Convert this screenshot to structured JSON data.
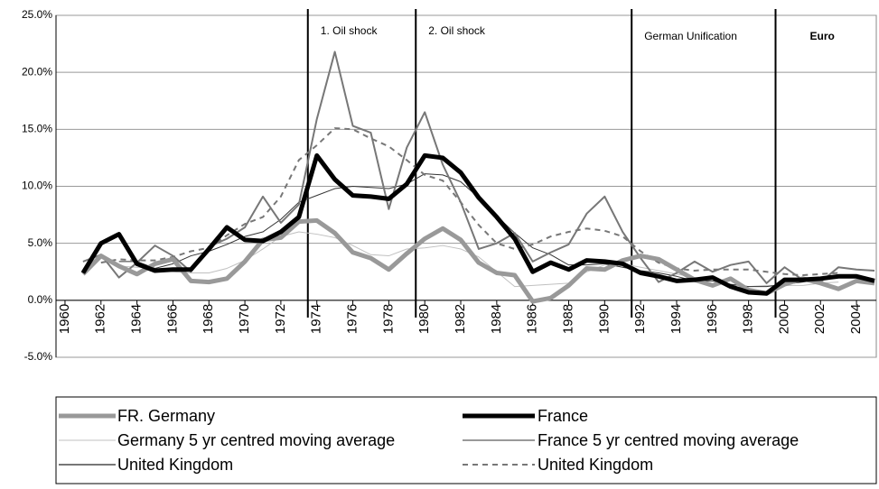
{
  "chart_data": {
    "type": "line",
    "x": [
      1961,
      1962,
      1963,
      1964,
      1965,
      1966,
      1967,
      1968,
      1969,
      1970,
      1971,
      1972,
      1973,
      1974,
      1975,
      1976,
      1977,
      1978,
      1979,
      1980,
      1981,
      1982,
      1983,
      1984,
      1985,
      1986,
      1987,
      1988,
      1989,
      1990,
      1991,
      1992,
      1993,
      1994,
      1995,
      1996,
      1997,
      1998,
      1999,
      2000,
      2001,
      2002,
      2003,
      2004,
      2005
    ],
    "xlim": [
      1959.5,
      2005.1
    ],
    "xticks": [
      1960,
      1962,
      1964,
      1966,
      1968,
      1970,
      1972,
      1974,
      1976,
      1978,
      1980,
      1982,
      1984,
      1986,
      1988,
      1990,
      1992,
      1994,
      1996,
      1998,
      2000,
      2002,
      2004
    ],
    "ylim": [
      -5,
      25
    ],
    "yticks": [
      {
        "value": -5,
        "label": "-5.0%"
      },
      {
        "value": 0,
        "label": "0.0%"
      },
      {
        "value": 5,
        "label": "5.0%"
      },
      {
        "value": 10,
        "label": "10.0%"
      },
      {
        "value": 15,
        "label": "15.0%"
      },
      {
        "value": 20,
        "label": "20.0%"
      },
      {
        "value": 25,
        "label": "25.0%"
      }
    ],
    "grid": true,
    "annotations": [
      {
        "x": 1973.5,
        "label": "1. Oil shock",
        "bold": false
      },
      {
        "x": 1979.5,
        "label": "2. Oil shock",
        "bold": false
      },
      {
        "x": 1991.5,
        "label": "German Unification",
        "bold": false
      },
      {
        "x": 1999.5,
        "label": "Euro",
        "bold": true
      }
    ],
    "series": [
      {
        "name": "FR. Germany",
        "color": "#999999",
        "line_width": 5,
        "dashed": false,
        "values": [
          2.3,
          3.9,
          3.0,
          2.3,
          3.2,
          3.6,
          1.7,
          1.6,
          1.9,
          3.4,
          5.3,
          5.5,
          6.9,
          7.0,
          5.9,
          4.2,
          3.7,
          2.7,
          4.1,
          5.4,
          6.3,
          5.3,
          3.3,
          2.4,
          2.2,
          -0.1,
          0.2,
          1.3,
          2.8,
          2.7,
          3.5,
          3.9,
          3.6,
          2.7,
          1.8,
          1.3,
          1.9,
          0.9,
          0.6,
          1.4,
          1.9,
          1.5,
          1.0,
          1.7,
          1.5
        ]
      },
      {
        "name": "France",
        "color": "#000000",
        "line_width": 5,
        "dashed": false,
        "values": [
          2.4,
          5.0,
          5.8,
          3.2,
          2.6,
          2.7,
          2.7,
          4.5,
          6.4,
          5.3,
          5.2,
          6.0,
          7.3,
          12.7,
          10.6,
          9.2,
          9.1,
          8.9,
          10.2,
          12.7,
          12.5,
          11.2,
          9.0,
          7.3,
          5.4,
          2.5,
          3.3,
          2.7,
          3.5,
          3.4,
          3.2,
          2.4,
          2.1,
          1.7,
          1.8,
          2.0,
          1.2,
          0.7,
          0.6,
          1.8,
          1.8,
          1.9,
          2.1,
          2.1,
          1.7
        ]
      },
      {
        "name": "Germany 5 yr centred moving average",
        "color": "#c0c0c0",
        "line_width": 1,
        "dashed": false,
        "values": [
          null,
          null,
          3.0,
          2.9,
          2.8,
          2.5,
          2.4,
          2.4,
          2.8,
          3.5,
          4.5,
          5.6,
          6.0,
          5.8,
          5.5,
          4.8,
          4.0,
          3.9,
          4.5,
          4.6,
          4.8,
          4.5,
          3.8,
          2.5,
          1.2,
          1.3,
          1.4,
          1.5,
          2.5,
          3.1,
          3.2,
          2.9,
          2.6,
          2.3,
          2.0,
          1.7,
          1.4,
          1.2,
          1.3,
          1.3,
          1.3,
          1.5,
          1.6,
          null,
          null
        ]
      },
      {
        "name": "France 5 yr centred moving average",
        "color": "#333333",
        "line_width": 1,
        "dashed": false,
        "values": [
          null,
          null,
          3.4,
          3.4,
          2.8,
          3.2,
          3.9,
          4.3,
          4.9,
          5.6,
          6.0,
          7.1,
          8.6,
          9.2,
          9.8,
          10.0,
          9.9,
          9.8,
          10.2,
          11.1,
          11.0,
          10.4,
          9.0,
          7.4,
          5.9,
          4.6,
          4.0,
          3.1,
          3.1,
          3.2,
          2.9,
          2.6,
          2.4,
          2.1,
          1.7,
          1.7,
          1.4,
          1.2,
          1.2,
          1.4,
          1.6,
          1.8,
          2.0,
          null,
          null
        ]
      },
      {
        "name": "United Kingdom",
        "color": "#777777",
        "line_width": 2,
        "dashed": false,
        "values": [
          3.4,
          4.0,
          2.0,
          3.3,
          4.8,
          3.9,
          2.5,
          4.7,
          5.4,
          6.4,
          9.1,
          6.8,
          8.4,
          15.9,
          21.8,
          15.3,
          14.7,
          8.0,
          13.4,
          16.5,
          11.9,
          8.6,
          4.5,
          5.0,
          5.9,
          3.4,
          4.2,
          4.9,
          7.6,
          9.1,
          6.0,
          3.7,
          1.6,
          2.4,
          3.4,
          2.5,
          3.1,
          3.4,
          1.5,
          2.9,
          1.8,
          1.6,
          2.9,
          2.7,
          2.6
        ]
      },
      {
        "name": "United Kingdom",
        "color": "#777777",
        "line_width": 2,
        "dashed": true,
        "values": [
          null,
          3.3,
          3.6,
          3.5,
          3.5,
          3.8,
          4.3,
          4.6,
          5.7,
          6.7,
          7.3,
          9.1,
          12.3,
          13.6,
          15.1,
          15.0,
          14.2,
          13.5,
          12.3,
          11.0,
          10.5,
          8.6,
          6.6,
          5.0,
          4.5,
          4.9,
          5.6,
          6.0,
          6.3,
          6.1,
          5.6,
          4.3,
          3.3,
          2.8,
          2.6,
          2.7,
          2.7,
          2.7,
          2.5,
          2.3,
          2.2,
          2.3,
          2.4,
          null,
          null
        ]
      }
    ]
  }
}
